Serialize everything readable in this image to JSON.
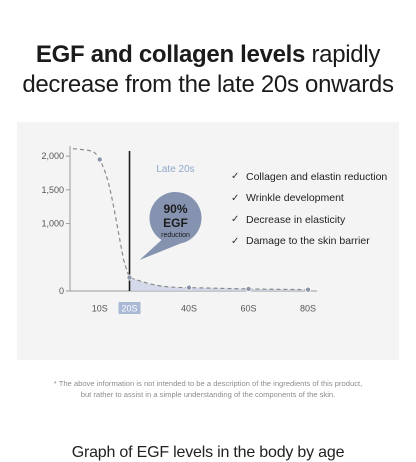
{
  "headline": {
    "bold": "EGF and collagen levels",
    "line1_rest": "rapidly",
    "line2": "decrease from the late 20s onwards"
  },
  "chart_data": {
    "type": "line",
    "title": "Graph of EGF levels in the body by age",
    "categories": [
      "10S",
      "20S",
      "40S",
      "60S",
      "80S"
    ],
    "x": [
      10,
      20,
      40,
      60,
      80
    ],
    "series": [
      {
        "name": "",
        "values": [
          1950,
          200,
          50,
          30,
          20
        ]
      }
    ],
    "yticks": [
      0,
      1000,
      1500,
      2000
    ],
    "ytick_labels": [
      "0",
      "1,000",
      "1,500",
      "2,000"
    ],
    "ylim": [
      0,
      2150
    ],
    "highlight_category": "20S",
    "annotation": {
      "label": "Late 20s",
      "callout_value": "90%",
      "callout_name": "EGF",
      "callout_sub": "reduction"
    },
    "effects": [
      "Collagen and elastin reduction",
      "Wrinkle development",
      "Decrease in elasticity",
      "Damage to the skin barrier"
    ],
    "colors": {
      "curve": "#8a8a8a",
      "point": "#8b95a8",
      "area": "#c9d2e6",
      "callout": "#8592b0",
      "highlight_box": "#a9b9d6",
      "late20s_text": "#8fa8cc"
    }
  },
  "footnote": {
    "line1": "* The above information is not intended to be a description of the ingredients of this product,",
    "line2": "but rather to assist in a simple understanding of the components of the skin."
  }
}
